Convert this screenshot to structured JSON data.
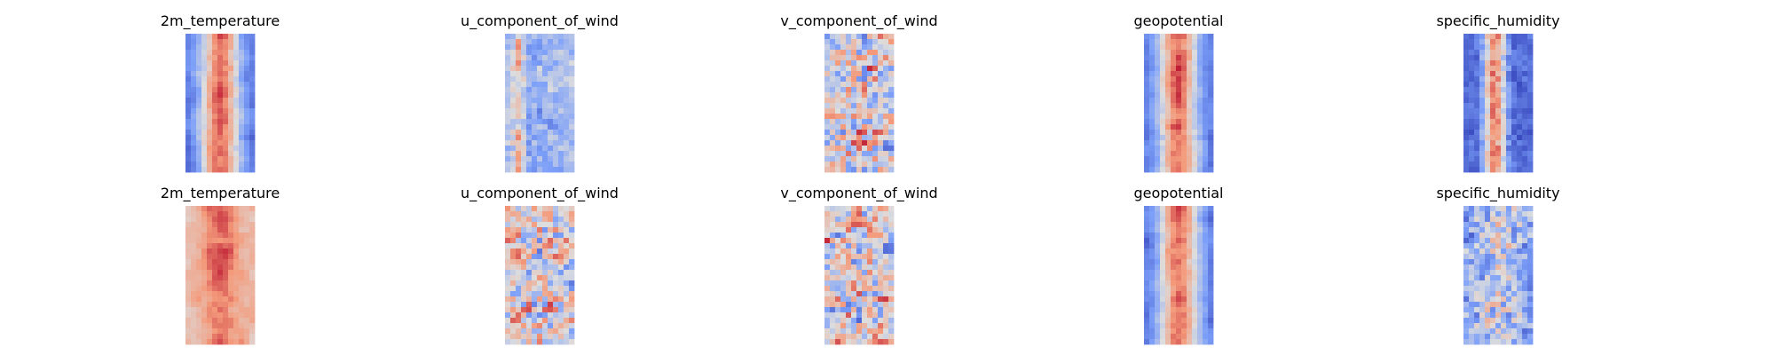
{
  "chart_data": [
    {
      "type": "heatmap",
      "title": "2m_temperature",
      "colormap": "coolwarm",
      "row": 1,
      "pattern": "band"
    },
    {
      "type": "heatmap",
      "title": "u_component_of_wind",
      "colormap": "coolwarm",
      "row": 1,
      "pattern": "streaks"
    },
    {
      "type": "heatmap",
      "title": "v_component_of_wind",
      "colormap": "coolwarm",
      "row": 1,
      "pattern": "noise"
    },
    {
      "type": "heatmap",
      "title": "geopotential",
      "colormap": "coolwarm",
      "row": 1,
      "pattern": "band"
    },
    {
      "type": "heatmap",
      "title": "specific_humidity",
      "colormap": "coolwarm",
      "row": 1,
      "pattern": "core"
    },
    {
      "type": "heatmap",
      "title": "2m_temperature",
      "colormap": "coolwarm",
      "row": 2,
      "pattern": "smooth-warm"
    },
    {
      "type": "heatmap",
      "title": "u_component_of_wind",
      "colormap": "coolwarm",
      "row": 2,
      "pattern": "noise"
    },
    {
      "type": "heatmap",
      "title": "v_component_of_wind",
      "colormap": "coolwarm",
      "row": 2,
      "pattern": "noise"
    },
    {
      "type": "heatmap",
      "title": "geopotential",
      "colormap": "coolwarm",
      "row": 2,
      "pattern": "band"
    },
    {
      "type": "heatmap",
      "title": "specific_humidity",
      "colormap": "coolwarm",
      "row": 2,
      "pattern": "cool-noise"
    }
  ]
}
